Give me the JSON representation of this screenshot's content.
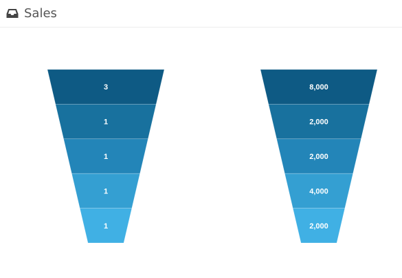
{
  "panel": {
    "title": "Sales",
    "icon": "inbox-icon"
  },
  "colors": [
    "#0e5a84",
    "#18719e",
    "#2385b8",
    "#349fd2",
    "#40b0e4"
  ],
  "chart_data": [
    {
      "type": "funnel",
      "values": [
        3,
        1,
        1,
        1,
        1
      ],
      "labels": [
        "3",
        "1",
        "1",
        "1",
        "1"
      ]
    },
    {
      "type": "funnel",
      "values": [
        8000,
        2000,
        2000,
        4000,
        2000
      ],
      "labels": [
        "8,000",
        "2,000",
        "2,000",
        "4,000",
        "2,000"
      ]
    }
  ]
}
